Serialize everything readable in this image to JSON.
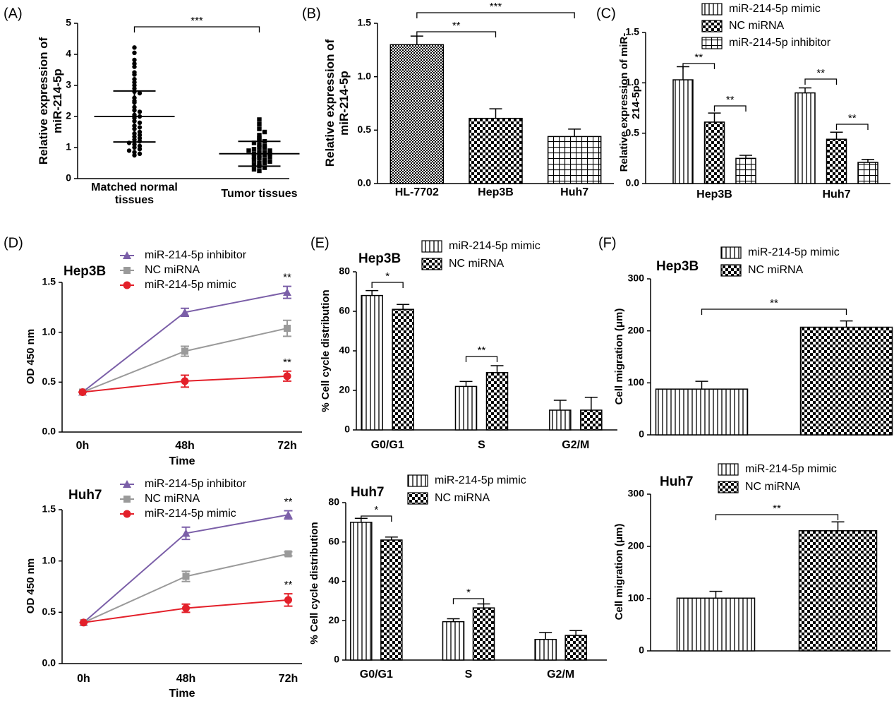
{
  "chart_data": [
    {
      "type": "dotplot",
      "label": "(A)",
      "ylabel": "Relative expression of miR-214-5p",
      "categories": [
        "Matched normal tissues",
        "Tumor tissues"
      ],
      "values": [
        [
          4.22,
          4.05,
          3.82,
          3.7,
          3.6,
          3.42,
          3.35,
          3.2,
          3.1,
          3.0,
          2.9,
          2.8,
          2.75,
          2.6,
          2.5,
          2.45,
          2.3,
          2.2,
          2.15,
          2.05,
          2.0,
          1.95,
          1.85,
          1.8,
          1.7,
          1.65,
          1.6,
          1.5,
          1.45,
          1.4,
          1.35,
          1.3,
          1.25,
          1.2,
          1.15,
          1.1,
          1.05,
          1.0,
          0.95,
          0.9,
          0.85,
          0.8,
          0.75
        ],
        [
          1.9,
          1.75,
          1.6,
          1.5,
          1.4,
          1.3,
          1.25,
          1.2,
          1.15,
          1.1,
          1.05,
          1.0,
          1.0,
          0.95,
          0.9,
          0.9,
          0.85,
          0.85,
          0.8,
          0.8,
          0.75,
          0.75,
          0.7,
          0.7,
          0.65,
          0.6,
          0.6,
          0.55,
          0.5,
          0.5,
          0.45,
          0.4,
          0.35,
          0.3,
          0.25
        ]
      ],
      "mean": [
        2.0,
        0.8
      ],
      "sd": [
        0.82,
        0.4
      ],
      "ylim": [
        0,
        5
      ],
      "yticks": [
        0,
        1,
        2,
        3,
        4,
        5
      ],
      "annotations": [
        {
          "text": "***",
          "between": [
            0,
            1
          ]
        }
      ]
    },
    {
      "type": "bar",
      "label": "(B)",
      "ylabel": "Relative expression of miR-214-5p",
      "categories": [
        "HL-7702",
        "Hep3B",
        "Huh7"
      ],
      "values": [
        1.3,
        0.61,
        0.44
      ],
      "errors": [
        0.08,
        0.09,
        0.07
      ],
      "ylim": [
        0,
        1.5
      ],
      "yticks": [
        {
          "value": 0,
          "label": "0.0"
        },
        0.5,
        {
          "value": 1,
          "label": "1.0"
        },
        1.5
      ],
      "annotations": [
        {
          "text": "**",
          "between": [
            0,
            1
          ]
        },
        {
          "text": "***",
          "between": [
            0,
            2
          ]
        }
      ]
    },
    {
      "type": "bar",
      "label": "(C)",
      "ylabel": "Relative expression of miR-214-5p",
      "categories": [
        "Hep3B",
        "Huh7"
      ],
      "series": [
        {
          "name": "miR-214-5p mimic",
          "values": [
            1.03,
            0.9
          ],
          "errors": [
            0.13,
            0.05
          ]
        },
        {
          "name": "NC miRNA",
          "values": [
            0.61,
            0.44
          ],
          "errors": [
            0.09,
            0.07
          ]
        },
        {
          "name": "miR-214-5p inhibitor",
          "values": [
            0.25,
            0.21
          ],
          "errors": [
            0.03,
            0.03
          ]
        }
      ],
      "ylim": [
        0,
        1.5
      ],
      "yticks": [
        {
          "value": 0,
          "label": "0.0"
        },
        0.5,
        {
          "value": 1,
          "label": "1.0"
        },
        1.5
      ],
      "annotations": [
        {
          "text": "**",
          "category": 0,
          "between": [
            0,
            1
          ]
        },
        {
          "text": "**",
          "category": 0,
          "between": [
            1,
            2
          ]
        },
        {
          "text": "**",
          "category": 1,
          "between": [
            0,
            1
          ]
        },
        {
          "text": "**",
          "category": 1,
          "between": [
            1,
            2
          ]
        }
      ]
    },
    {
      "type": "line",
      "label": "(D)",
      "title": "Hep3B",
      "xlabel": "Time",
      "ylabel": "OD 450 nm",
      "categories": [
        "0h",
        "48h",
        "72h"
      ],
      "series": [
        {
          "name": "miR-214-5p inhibitor",
          "color": "#7b5fa8",
          "values": [
            0.4,
            1.2,
            1.4
          ],
          "errors": [
            0,
            0.04,
            0.06
          ]
        },
        {
          "name": "NC miRNA",
          "color": "#9a9a9a",
          "values": [
            0.4,
            0.81,
            1.04
          ],
          "errors": [
            0,
            0.05,
            0.08
          ]
        },
        {
          "name": "miR-214-5p mimic",
          "color": "#e3202a",
          "values": [
            0.4,
            0.51,
            0.56
          ],
          "errors": [
            0,
            0.06,
            0.05
          ]
        }
      ],
      "ylim": [
        0,
        1.5
      ],
      "yticks": [
        {
          "value": 0,
          "label": "0.0"
        },
        0.5,
        {
          "value": 1,
          "label": "1.0"
        },
        1.5
      ],
      "annotations": [
        {
          "text": "**",
          "series": 0,
          "index": 2
        },
        {
          "text": "**",
          "series": 2,
          "index": 2
        }
      ]
    },
    {
      "type": "line",
      "title": "Huh7",
      "xlabel": "Time",
      "ylabel": "OD 450 nm",
      "categories": [
        "0h",
        "48h",
        "72h"
      ],
      "series": [
        {
          "name": "miR-214-5p inhibitor",
          "color": "#7b5fa8",
          "values": [
            0.4,
            1.27,
            1.45
          ],
          "errors": [
            0,
            0.06,
            0.04
          ]
        },
        {
          "name": "NC miRNA",
          "color": "#9a9a9a",
          "values": [
            0.4,
            0.85,
            1.07
          ],
          "errors": [
            0,
            0.05,
            0.02
          ]
        },
        {
          "name": "miR-214-5p mimic",
          "color": "#e3202a",
          "values": [
            0.4,
            0.54,
            0.62
          ],
          "errors": [
            0,
            0.04,
            0.06
          ]
        }
      ],
      "ylim": [
        0,
        1.5
      ],
      "yticks": [
        {
          "value": 0,
          "label": "0.0"
        },
        0.5,
        {
          "value": 1,
          "label": "1.0"
        },
        1.5
      ],
      "annotations": [
        {
          "text": "**",
          "series": 0,
          "index": 2
        },
        {
          "text": "**",
          "series": 2,
          "index": 2
        }
      ]
    },
    {
      "type": "bar",
      "label": "(E)",
      "title": "Hep3B",
      "ylabel": "% Cell cycle distribution",
      "categories": [
        "G0/G1",
        "S",
        "G2/M"
      ],
      "series": [
        {
          "name": "miR-214-5p mimic",
          "values": [
            68,
            22,
            10
          ],
          "errors": [
            2.5,
            2.5,
            5
          ]
        },
        {
          "name": "NC miRNA",
          "values": [
            61,
            29,
            10
          ],
          "errors": [
            2.5,
            3.5,
            6.5
          ]
        }
      ],
      "ylim": [
        0,
        80
      ],
      "yticks": [
        0,
        20,
        40,
        60,
        80
      ],
      "annotations": [
        {
          "text": "*",
          "category": 0,
          "between": [
            0,
            1
          ]
        },
        {
          "text": "**",
          "category": 1,
          "between": [
            0,
            1
          ]
        }
      ]
    },
    {
      "type": "bar",
      "title": "Huh7",
      "ylabel": "% Cell cycle distribution",
      "categories": [
        "G0/G1",
        "S",
        "G2/M"
      ],
      "series": [
        {
          "name": "miR-214-5p mimic",
          "values": [
            70,
            19.5,
            10.5
          ],
          "errors": [
            2,
            1.5,
            3.5
          ]
        },
        {
          "name": "NC miRNA",
          "values": [
            61,
            26.5,
            12.5
          ],
          "errors": [
            1.5,
            2,
            2.5
          ]
        }
      ],
      "ylim": [
        0,
        80
      ],
      "yticks": [
        0,
        20,
        40,
        60,
        80
      ],
      "annotations": [
        {
          "text": "*",
          "category": 0,
          "between": [
            0,
            1
          ]
        },
        {
          "text": "*",
          "category": 1,
          "between": [
            0,
            1
          ]
        }
      ]
    },
    {
      "type": "bar",
      "label": "(F)",
      "title": "Hep3B",
      "ylabel": "Cell migration (μm)",
      "categories": [
        null
      ],
      "series": [
        {
          "name": "miR-214-5p mimic",
          "values": [
            88
          ],
          "errors": [
            15
          ]
        },
        {
          "name": "NC miRNA",
          "values": [
            207
          ],
          "errors": [
            12
          ]
        }
      ],
      "ylim": [
        0,
        300
      ],
      "yticks": [
        0,
        100,
        200,
        300
      ],
      "annotations": [
        {
          "text": "**",
          "category": 0,
          "between": [
            0,
            1
          ]
        }
      ]
    },
    {
      "type": "bar",
      "title": "Huh7",
      "ylabel": "Cell migration (μm)",
      "categories": [
        null
      ],
      "series": [
        {
          "name": "miR-214-5p mimic",
          "values": [
            101
          ],
          "errors": [
            13
          ]
        },
        {
          "name": "NC miRNA",
          "values": [
            230
          ],
          "errors": [
            17
          ]
        }
      ],
      "ylim": [
        0,
        300
      ],
      "yticks": [
        0,
        100,
        200,
        300
      ],
      "annotations": [
        {
          "text": "**",
          "category": 0,
          "between": [
            0,
            1
          ]
        }
      ]
    }
  ]
}
